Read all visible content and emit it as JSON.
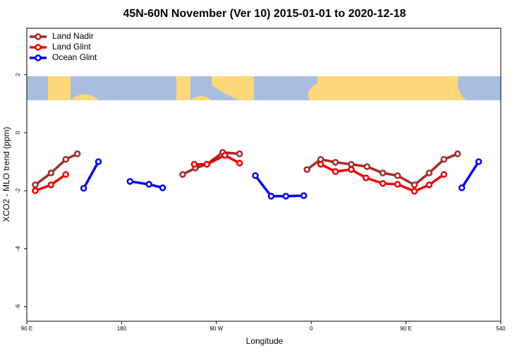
{
  "chart_data": {
    "type": "line",
    "title": "45N-60N November (Ver 10)   2015-01-01 to 2020-12-18",
    "x_label": "Longitude",
    "y_label": "XCO2 - MLO trend (ppm)",
    "xlim": [
      90,
      540
    ],
    "xticks": [
      {
        "value": 90,
        "label": "90 E"
      },
      180,
      {
        "value": 270,
        "label": "90 W"
      },
      {
        "value": 360,
        "label": "0"
      },
      {
        "value": 450,
        "label": "90 E"
      },
      540
    ],
    "ylim": [
      -6.5,
      3.6
    ],
    "yticks": [
      2,
      0,
      -2,
      -4,
      -6
    ],
    "legend": "top-left",
    "series": [
      {
        "name": "Land Nadir",
        "color": "#a52a2a",
        "x": [
          98,
          113,
          127,
          138,
          null,
          238,
          250,
          261,
          276,
          292,
          null,
          356,
          369,
          383,
          398,
          413,
          428,
          442,
          458,
          472,
          486,
          499
        ],
        "values": [
          -1.8,
          -1.39,
          -0.92,
          -0.73,
          null,
          -1.44,
          -1.22,
          -1.09,
          -0.68,
          -0.73,
          null,
          -1.27,
          -0.92,
          -1.02,
          -1.09,
          -1.17,
          -1.39,
          -1.48,
          -1.8,
          -1.39,
          -0.92,
          -0.73
        ]
      },
      {
        "name": "Land Glint",
        "color": "#ee0000",
        "x": [
          98,
          113,
          127,
          null,
          249,
          261,
          278,
          292,
          null,
          369,
          383,
          398,
          412,
          428,
          442,
          458,
          472,
          486
        ],
        "values": [
          -2.0,
          -1.8,
          -1.44,
          null,
          -1.09,
          -1.09,
          -0.78,
          -1.05,
          null,
          -1.09,
          -1.34,
          -1.27,
          -1.56,
          -1.75,
          -1.78,
          -2.02,
          -1.8,
          -1.44
        ]
      },
      {
        "name": "Ocean Glint",
        "color": "#0000ee",
        "x": [
          144,
          158,
          null,
          188,
          206,
          219,
          null,
          307,
          322,
          336,
          353,
          null,
          503,
          519
        ],
        "values": [
          -1.92,
          -1.0,
          null,
          -1.68,
          -1.78,
          -1.9,
          null,
          -1.48,
          -2.19,
          -2.19,
          -2.17,
          null,
          -1.9,
          -1.0
        ]
      }
    ]
  }
}
